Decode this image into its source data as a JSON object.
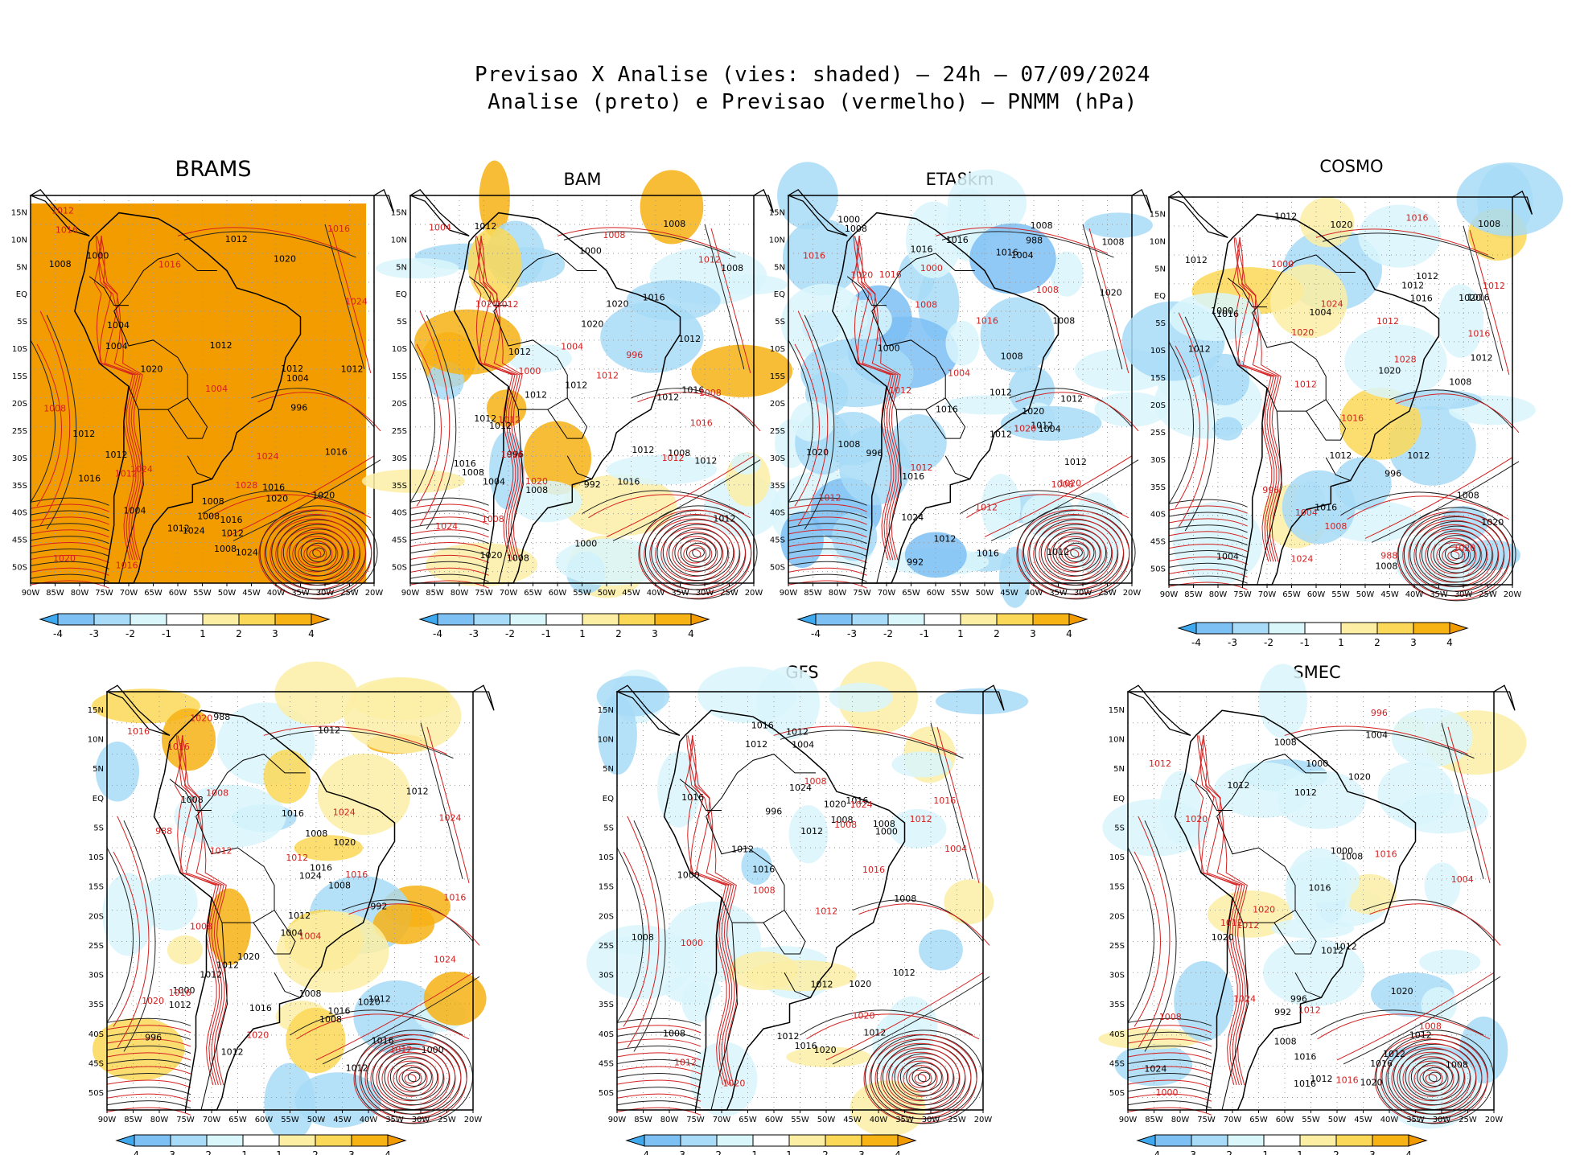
{
  "figure": {
    "title_line1": "Previsao X Analise (vies: shaded) – 24h – 07/09/2024",
    "title_line2": "Analise (preto) e Previsao (vermelho) – PNMM (hPa)"
  },
  "axes": {
    "lon_labels": [
      "90W",
      "85W",
      "80W",
      "75W",
      "70W",
      "65W",
      "60W",
      "55W",
      "50W",
      "45W",
      "40W",
      "35W",
      "30W",
      "25W",
      "20W"
    ],
    "lat_labels": [
      "15N",
      "10N",
      "5N",
      "EQ",
      "5S",
      "10S",
      "15S",
      "20S",
      "25S",
      "30S",
      "35S",
      "40S",
      "45S",
      "50S"
    ]
  },
  "colorbar": {
    "ticks": [
      "-4",
      "-3",
      "-2",
      "-1",
      "1",
      "2",
      "3",
      "4"
    ],
    "colors": [
      "#3ea9ef",
      "#7cc0f4",
      "#a7dbf7",
      "#d9f6fb",
      "#ffffff",
      "#fcefa4",
      "#fbd857",
      "#f7b214",
      "#f29b00"
    ]
  },
  "panels": [
    {
      "name": "BRAMS",
      "shade": "full-positive",
      "labels_black": [
        "1012",
        "1008",
        "1012",
        "1008",
        "1012",
        "1016",
        "1008",
        "1012",
        "1012",
        "1004",
        "1012",
        "1020",
        "1024",
        "1024",
        "1020",
        "1012",
        "1016",
        "1020",
        "1016",
        "1004",
        "1000",
        "996",
        "1004",
        "1020",
        "1016",
        "1004",
        "1012",
        "1008"
      ],
      "labels_red": [
        "1016",
        "1012",
        "1008",
        "1016",
        "1024",
        "1028",
        "1016",
        "1024",
        "1020",
        "1024",
        "1012",
        "1004",
        "1016"
      ]
    },
    {
      "name": "BAM",
      "shade": "mixed",
      "labels_black": [
        "1008",
        "1012",
        "1012",
        "1008",
        "1012",
        "1016",
        "1012",
        "1008",
        "1012",
        "1016",
        "1012",
        "1008",
        "1012",
        "1008",
        "1012",
        "1020",
        "1016",
        "1020",
        "1012",
        "1008",
        "1004",
        "1000",
        "996",
        "992",
        "1012",
        "1016",
        "1020",
        "1000",
        "1012"
      ],
      "labels_red": [
        "1012",
        "1008",
        "1012",
        "1016",
        "1008",
        "1012",
        "1024",
        "1020",
        "1004",
        "1008",
        "1000",
        "1004",
        "1012",
        "996",
        "1016",
        "1020",
        "1012"
      ]
    },
    {
      "name": "ETA8km",
      "shade": "negative",
      "labels_black": [
        "1008",
        "1012",
        "1008",
        "1008",
        "1012",
        "1016",
        "1008",
        "1012",
        "1012",
        "1008",
        "1016",
        "1020",
        "1016",
        "1012",
        "1016",
        "1012",
        "1020",
        "1016",
        "1008",
        "1004",
        "1000",
        "996",
        "992",
        "988",
        "1024",
        "1020",
        "1016",
        "1012",
        "1000",
        "1004"
      ],
      "labels_red": [
        "1008",
        "1012",
        "1012",
        "1016",
        "1008",
        "1020",
        "1020",
        "1012",
        "1016",
        "1004",
        "1000",
        "1008",
        "1016",
        "1020",
        "1012"
      ]
    },
    {
      "name": "COSMO",
      "shade": "mixed-negative",
      "labels_black": [
        "1012",
        "1012",
        "1008",
        "1008",
        "1012",
        "1016",
        "1020",
        "1016",
        "1012",
        "1008",
        "1016",
        "1020",
        "1012",
        "1016",
        "1020",
        "1008",
        "1004",
        "1000",
        "996",
        "1012",
        "1012",
        "1020",
        "1004",
        "1012"
      ],
      "labels_red": [
        "1012",
        "1016",
        "1024",
        "1020",
        "1016",
        "1024",
        "1020",
        "1016",
        "1012",
        "1004",
        "1008",
        "1000",
        "996",
        "988",
        "1028",
        "1012"
      ]
    },
    {
      "name": "",
      "shade": "mixed-positive",
      "labels_black": [
        "1012",
        "1008",
        "1012",
        "1012",
        "1008",
        "1008",
        "1012",
        "1016",
        "1020",
        "1016",
        "1012",
        "1008",
        "1016",
        "1012",
        "1016",
        "1020",
        "1012",
        "1024",
        "1016",
        "1012",
        "1020",
        "1008",
        "1004",
        "1000",
        "996",
        "992",
        "988",
        "1012",
        "1000"
      ],
      "labels_red": [
        "1012",
        "1016",
        "1016",
        "1008",
        "1024",
        "1020",
        "1016",
        "1012",
        "1024",
        "1008",
        "1004",
        "1020",
        "1012",
        "1016",
        "988",
        "1020",
        "1024",
        "1016"
      ]
    },
    {
      "name": "GFS",
      "shade": "light",
      "labels_black": [
        "1008",
        "1012",
        "1012",
        "1008",
        "1012",
        "1016",
        "1008",
        "1012",
        "1012",
        "1016",
        "1020",
        "1024",
        "1016",
        "1008",
        "1012",
        "1020",
        "1016",
        "1008",
        "1004",
        "1000",
        "996",
        "1012",
        "1020",
        "1016",
        "1012",
        "1000"
      ],
      "labels_red": [
        "1008",
        "1012",
        "1016",
        "1008",
        "1012",
        "1024",
        "1020",
        "1016",
        "1004",
        "1000",
        "1008",
        "1012",
        "1020"
      ]
    },
    {
      "name": "SMEC",
      "shade": "light-mixed",
      "labels_black": [
        "1008",
        "1012",
        "1012",
        "1008",
        "1016",
        "1020",
        "1012",
        "1008",
        "1016",
        "1012",
        "1020",
        "1008",
        "1016",
        "1012",
        "1020",
        "1004",
        "1000",
        "996",
        "992",
        "1012",
        "1016",
        "1024",
        "1020",
        "1000",
        "1012"
      ],
      "labels_red": [
        "1012",
        "1012",
        "1016",
        "1008",
        "1012",
        "1024",
        "1020",
        "1016",
        "1004",
        "1000",
        "996",
        "1008",
        "1012",
        "1020"
      ]
    }
  ]
}
